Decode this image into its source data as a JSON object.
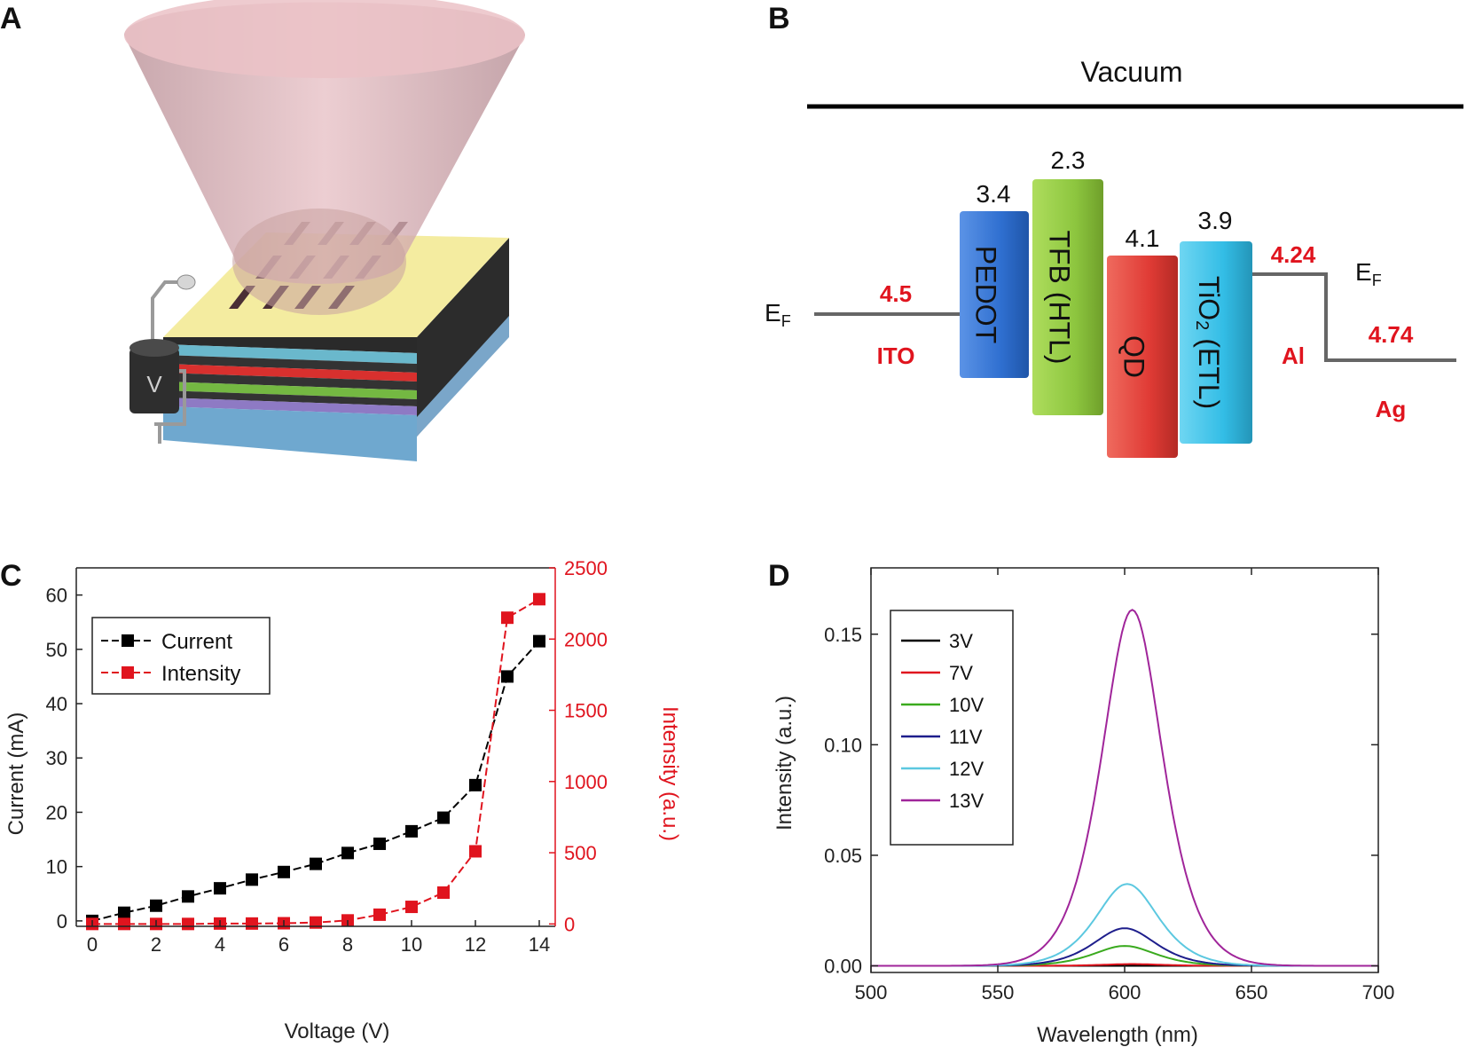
{
  "panels": {
    "a": "A",
    "b": "B",
    "c": "C",
    "d": "D"
  },
  "device": {
    "meter_label": "V"
  },
  "energy_diagram": {
    "vacuum": "Vacuum",
    "ef_left": "E",
    "ef_right": "E",
    "ef_sub": "F",
    "ito": {
      "value": "4.5",
      "label": "ITO"
    },
    "pedot": {
      "value": "3.4",
      "label": "PEDOT"
    },
    "tfb": {
      "value": "2.3",
      "label": "TFB (HTL)"
    },
    "qd": {
      "value": "4.1",
      "label": "QD"
    },
    "tio2": {
      "value": "3.9",
      "label_a": "TiO",
      "label_sub": "2",
      "label_b": " (ETL)"
    },
    "al": {
      "value": "4.24",
      "label": "Al"
    },
    "ag": {
      "value": "4.74",
      "label": "Ag"
    },
    "colors": {
      "pedot": "#2f6fd0",
      "tfb": "#8dc63f",
      "qd": "#e03b35",
      "tio2": "#33bde6",
      "accent": "#e0141e"
    }
  },
  "chart_data": [
    {
      "type": "line",
      "panel": "C",
      "xlabel": "Voltage (V)",
      "ylabel": "Current (mA)",
      "y2label": "Intensity (a.u.)",
      "xlim": [
        -0.5,
        14.5
      ],
      "ylim": [
        -1,
        65
      ],
      "y2lim": [
        -16.67,
        2500
      ],
      "xticks": [
        "0",
        "2",
        "4",
        "6",
        "8",
        "10",
        "12",
        "14"
      ],
      "yticks": [
        "0",
        "10",
        "20",
        "30",
        "40",
        "50",
        "60"
      ],
      "y2ticks": [
        "0",
        "500",
        "1000",
        "1500",
        "2000",
        "2500"
      ],
      "x": [
        0,
        1,
        2,
        3,
        4,
        5,
        6,
        7,
        8,
        9,
        10,
        11,
        12,
        13,
        14
      ],
      "series": [
        {
          "name": "Current",
          "axis": "left",
          "color": "#000000",
          "values": [
            0,
            1.5,
            2.8,
            4.5,
            6.0,
            7.6,
            9.0,
            10.5,
            12.5,
            14.2,
            16.5,
            19.0,
            25.0,
            45.0,
            51.5
          ]
        },
        {
          "name": "Intensity",
          "axis": "right",
          "color": "#e0141e",
          "values": [
            0,
            0,
            0,
            0,
            3,
            3,
            5,
            10,
            25,
            65,
            120,
            220,
            510,
            2150,
            2280
          ]
        }
      ],
      "legend": "top-left"
    },
    {
      "type": "line",
      "panel": "D",
      "xlabel": "Wavelength (nm)",
      "ylabel": "Intensity (a.u.)",
      "xlim": [
        500,
        700
      ],
      "ylim": [
        -0.003,
        0.18
      ],
      "xticks": [
        "500",
        "550",
        "600",
        "650",
        "700"
      ],
      "yticks": [
        "0.00",
        "0.05",
        "0.10",
        "0.15"
      ],
      "series": [
        {
          "name": "3V",
          "color": "#000000",
          "peak": 0.0,
          "center": 603,
          "width": 17
        },
        {
          "name": "7V",
          "color": "#e0141e",
          "peak": 0.0008,
          "center": 603,
          "width": 17
        },
        {
          "name": "10V",
          "color": "#3aaa1e",
          "peak": 0.009,
          "center": 600,
          "width": 18
        },
        {
          "name": "11V",
          "color": "#1e1e8c",
          "peak": 0.017,
          "center": 600,
          "width": 18
        },
        {
          "name": "12V",
          "color": "#5cc8e0",
          "peak": 0.037,
          "center": 601,
          "width": 18
        },
        {
          "name": "13V",
          "color": "#a0259a",
          "peak": 0.161,
          "center": 603,
          "width": 17.5
        }
      ],
      "legend": "top-left"
    }
  ]
}
